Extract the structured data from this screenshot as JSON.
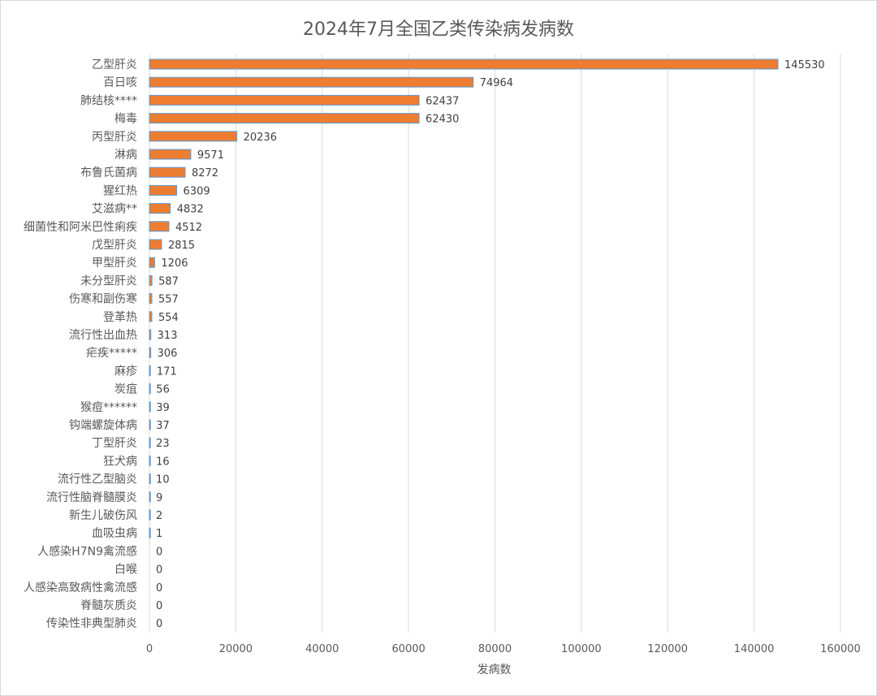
{
  "chart_data": {
    "type": "bar",
    "orientation": "horizontal",
    "title": "2024年7月全国乙类传染病发病数",
    "xlabel": "发病数",
    "ylabel": "",
    "xlim": [
      0,
      160000
    ],
    "xticks": [
      0,
      20000,
      40000,
      60000,
      80000,
      100000,
      120000,
      140000,
      160000
    ],
    "grid": "vertical",
    "legend": "none",
    "bar_color": "#ED7D31",
    "bar_edge_color": "#5B9BD5",
    "categories": [
      "乙型肝炎",
      "百日咳",
      "肺结核****",
      "梅毒",
      "丙型肝炎",
      "淋病",
      "布鲁氏菌病",
      "猩红热",
      "艾滋病**",
      "细菌性和阿米巴性痢疾",
      "戊型肝炎",
      "甲型肝炎",
      "未分型肝炎",
      "伤寒和副伤寒",
      "登革热",
      "流行性出血热",
      "疟疾*****",
      "麻疹",
      "炭疽",
      "猴痘******",
      "钩端螺旋体病",
      "丁型肝炎",
      "狂犬病",
      "流行性乙型脑炎",
      "流行性脑脊髓膜炎",
      "新生儿破伤风",
      "血吸虫病",
      "人感染H7N9禽流感",
      "白喉",
      "人感染高致病性禽流感",
      "脊髓灰质炎",
      "传染性非典型肺炎"
    ],
    "values": [
      145530,
      74964,
      62437,
      62430,
      20236,
      9571,
      8272,
      6309,
      4832,
      4512,
      2815,
      1206,
      587,
      557,
      554,
      313,
      306,
      171,
      56,
      39,
      37,
      23,
      16,
      10,
      9,
      2,
      1,
      0,
      0,
      0,
      0,
      0
    ]
  }
}
